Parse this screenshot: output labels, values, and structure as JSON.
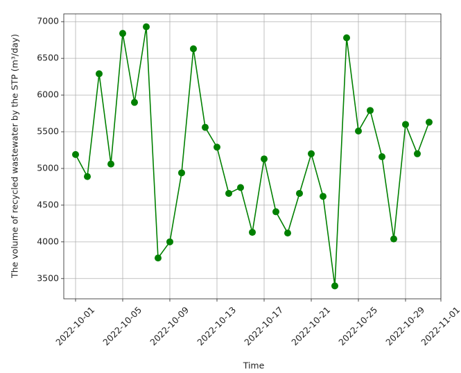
{
  "chart_data": {
    "type": "line",
    "x_label": "Time",
    "y_label": "The volume of recycled wastewater by the STP (m³/day)",
    "x": [
      "2022-10-01",
      "2022-10-02",
      "2022-10-03",
      "2022-10-04",
      "2022-10-05",
      "2022-10-06",
      "2022-10-07",
      "2022-10-08",
      "2022-10-09",
      "2022-10-10",
      "2022-10-11",
      "2022-10-12",
      "2022-10-13",
      "2022-10-14",
      "2022-10-15",
      "2022-10-16",
      "2022-10-17",
      "2022-10-18",
      "2022-10-19",
      "2022-10-20",
      "2022-10-21",
      "2022-10-22",
      "2022-10-23",
      "2022-10-24",
      "2022-10-25",
      "2022-10-26",
      "2022-10-27",
      "2022-10-28",
      "2022-10-29",
      "2022-10-30",
      "2022-10-31"
    ],
    "values": [
      5190,
      4890,
      6290,
      5060,
      6840,
      5900,
      6930,
      3780,
      4000,
      4940,
      6630,
      5560,
      5290,
      4660,
      4740,
      4130,
      5130,
      4410,
      4120,
      4660,
      5200,
      4620,
      3400,
      6780,
      5510,
      5790,
      5160,
      4040,
      5600,
      5200,
      5630
    ],
    "color": "#008000",
    "xlim": [
      "2022-09-30",
      "2022-11-01"
    ],
    "xticks": [
      "2022-10-01",
      "2022-10-05",
      "2022-10-09",
      "2022-10-13",
      "2022-10-17",
      "2022-10-21",
      "2022-10-25",
      "2022-10-29",
      "2022-11-01"
    ],
    "ylim": [
      3224,
      7106
    ],
    "yticks": [
      3500,
      4000,
      4500,
      5000,
      5500,
      6000,
      6500,
      7000
    ],
    "grid": true
  }
}
